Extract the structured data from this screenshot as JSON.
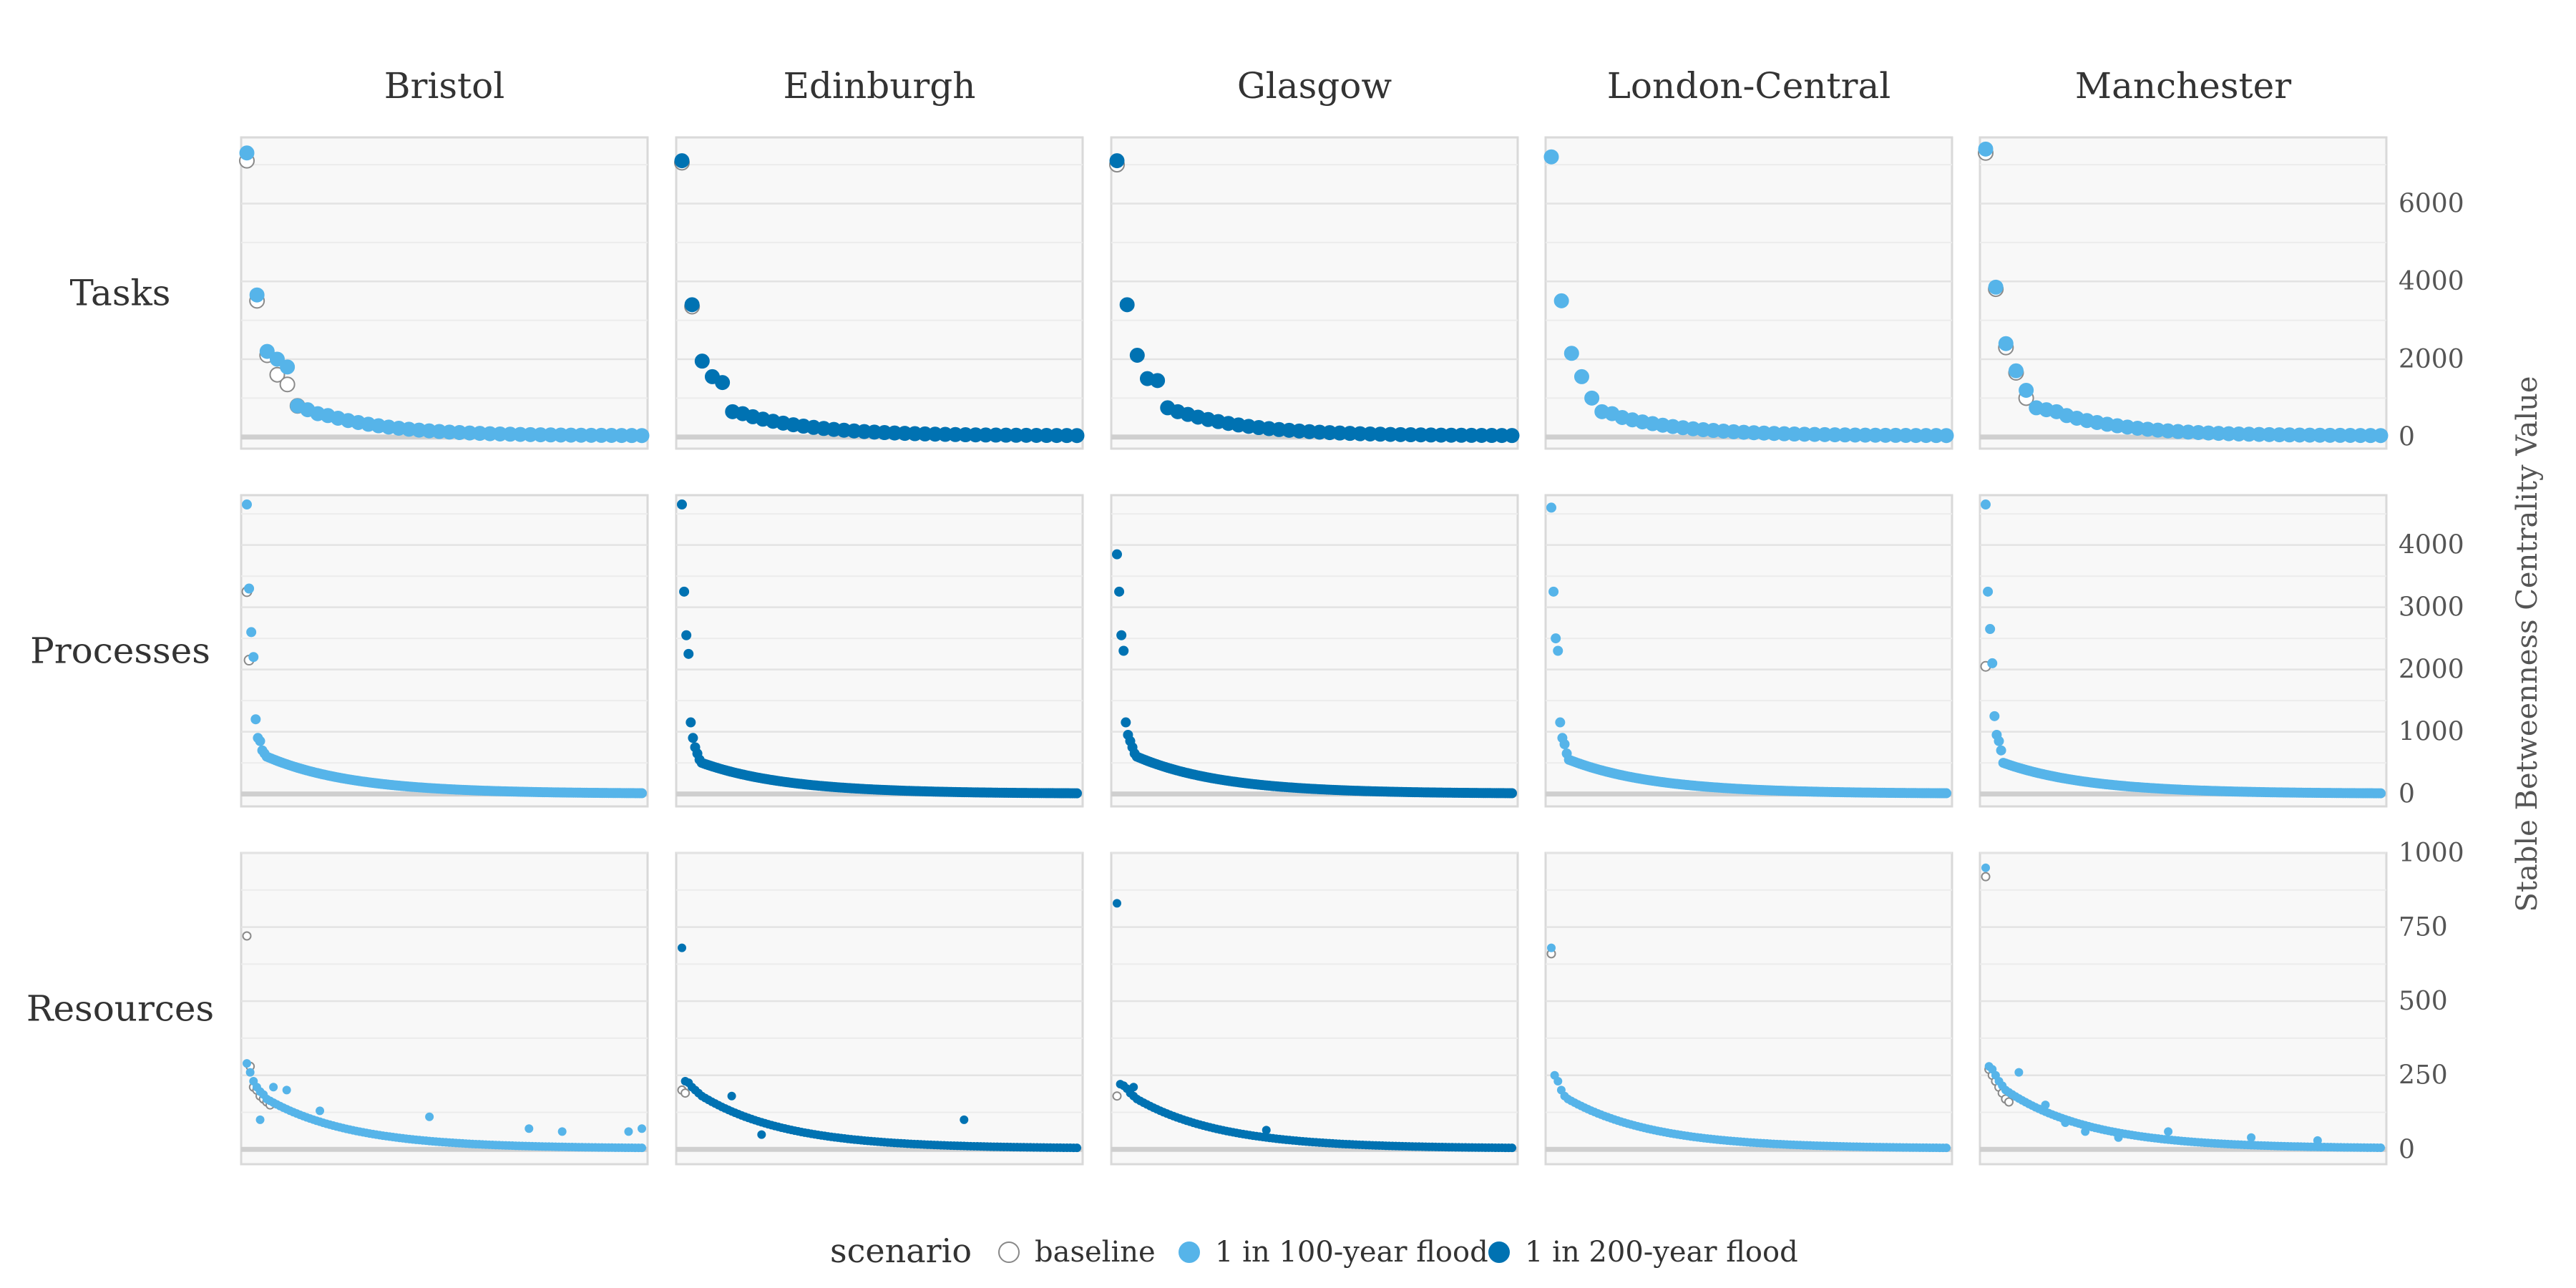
{
  "chart_data": {
    "type": "scatter",
    "columns": [
      "Bristol",
      "Edinburgh",
      "Glasgow",
      "London-Central",
      "Manchester"
    ],
    "rows": [
      "Tasks",
      "Processes",
      "Resources"
    ],
    "ylabel": "Stable Betweenness Centrality Value",
    "xlabel": "",
    "grid": true,
    "y_axis_side": "right",
    "legend": {
      "title": "scenario",
      "position": "bottom",
      "entries": [
        {
          "key": "baseline",
          "label": "baseline",
          "color": "#ffffff",
          "stroke": "#888888"
        },
        {
          "key": "flood100",
          "label": "1 in 100-year flood",
          "color": "#56B4E9",
          "stroke": "#56B4E9"
        },
        {
          "key": "flood200",
          "label": "1 in 200-year flood",
          "color": "#0072B2",
          "stroke": "#0072B2"
        }
      ]
    },
    "scenario_by_column": {
      "Bristol": "flood100",
      "Edinburgh": "flood200",
      "Glasgow": "flood200",
      "London-Central": "flood100",
      "Manchester": "flood100"
    },
    "row_axes": {
      "Tasks": {
        "ylim": [
          -300,
          7700
        ],
        "ticks": [
          0,
          2000,
          4000,
          6000
        ],
        "tick_labels": [
          "0",
          "2000",
          "4000",
          "6000"
        ]
      },
      "Processes": {
        "ylim": [
          -200,
          4800
        ],
        "ticks": [
          0,
          1000,
          2000,
          3000,
          4000
        ],
        "tick_labels": [
          "0",
          "1000",
          "2000",
          "3000",
          "4000"
        ]
      },
      "Resources": {
        "ylim": [
          -50,
          1000
        ],
        "ticks": [
          0,
          250,
          500,
          750,
          1000
        ],
        "tick_labels": [
          "0",
          "250",
          "500",
          "750",
          "1000"
        ]
      }
    },
    "panels": {
      "Tasks": {
        "Bristol": {
          "n": 40,
          "head": [
            7300,
            3650,
            2200,
            2000,
            1800,
            800,
            700,
            600
          ],
          "tail_start": 550,
          "tail_end": 30,
          "baseline_head": [
            7100,
            3500,
            2100,
            1600,
            1350,
            800
          ],
          "outliers": []
        },
        "Edinburgh": {
          "n": 40,
          "head": [
            7100,
            3400,
            1950,
            1550,
            1400,
            650,
            600
          ],
          "tail_start": 520,
          "tail_end": 30,
          "baseline_head": [
            7050,
            3350
          ],
          "outliers": []
        },
        "Glasgow": {
          "n": 40,
          "head": [
            7100,
            3400,
            2100,
            1500,
            1450,
            750,
            650
          ],
          "tail_start": 580,
          "tail_end": 30,
          "baseline_head": [
            7000
          ],
          "outliers": []
        },
        "London-Central": {
          "n": 40,
          "head": [
            7200,
            3500,
            2150,
            1550,
            1000,
            650,
            600
          ],
          "tail_start": 500,
          "tail_end": 30,
          "baseline_head": [],
          "outliers": []
        },
        "Manchester": {
          "n": 40,
          "head": [
            7400,
            3850,
            2400,
            1700,
            1200,
            750,
            700,
            650
          ],
          "tail_start": 550,
          "tail_end": 30,
          "baseline_head": [
            7300,
            3800,
            2300,
            1650,
            1000
          ],
          "outliers": []
        }
      },
      "Processes": {
        "Bristol": {
          "n": 180,
          "head": [
            4650,
            3300,
            2600,
            2200,
            1200,
            900,
            850,
            700,
            650
          ],
          "tail_start": 600,
          "tail_end": 5,
          "baseline_head": [
            3250,
            2150
          ],
          "outliers": []
        },
        "Edinburgh": {
          "n": 180,
          "head": [
            4650,
            3250,
            2550,
            2250,
            1150,
            900,
            750,
            650,
            550
          ],
          "tail_start": 500,
          "tail_end": 5,
          "baseline_head": [],
          "outliers": []
        },
        "Glasgow": {
          "n": 180,
          "head": [
            3850,
            3250,
            2550,
            2300,
            1150,
            950,
            850,
            750,
            650
          ],
          "tail_start": 600,
          "tail_end": 5,
          "baseline_head": [],
          "outliers": []
        },
        "London-Central": {
          "n": 180,
          "head": [
            4600,
            3250,
            2500,
            2300,
            1150,
            900,
            800,
            650
          ],
          "tail_start": 550,
          "tail_end": 5,
          "baseline_head": [],
          "outliers": []
        },
        "Manchester": {
          "n": 180,
          "head": [
            4650,
            3250,
            2650,
            2100,
            1250,
            950,
            850,
            700
          ],
          "tail_start": 500,
          "tail_end": 5,
          "baseline_head": [
            2050
          ],
          "outliers": []
        }
      },
      "Resources": {
        "Bristol": {
          "n": 120,
          "head": [
            290,
            260,
            230,
            210,
            195,
            185
          ],
          "tail_start": 170,
          "tail_end": 3,
          "baseline_head": [
            720,
            280,
            210,
            200,
            180,
            170,
            160,
            150
          ],
          "outliers": [
            [
              4,
              100
            ],
            [
              8,
              210
            ],
            [
              12,
              200
            ],
            [
              22,
              130
            ],
            [
              55,
              110
            ],
            [
              85,
              70
            ],
            [
              95,
              60
            ],
            [
              115,
              60
            ],
            [
              119,
              70
            ]
          ]
        },
        "Edinburgh": {
          "n": 120,
          "head": [
            680,
            230,
            225,
            210,
            200,
            190
          ],
          "tail_start": 180,
          "tail_end": 3,
          "baseline_head": [
            200,
            190
          ],
          "outliers": [
            [
              15,
              180
            ],
            [
              24,
              50
            ],
            [
              85,
              100
            ]
          ]
        },
        "Glasgow": {
          "n": 120,
          "head": [
            830,
            220,
            215,
            205,
            190,
            180
          ],
          "tail_start": 170,
          "tail_end": 3,
          "baseline_head": [
            180
          ],
          "outliers": [
            [
              5,
              210
            ],
            [
              45,
              65
            ]
          ]
        },
        "London-Central": {
          "n": 120,
          "head": [
            680,
            250,
            230,
            200,
            180
          ],
          "tail_start": 170,
          "tail_end": 3,
          "baseline_head": [
            660
          ],
          "outliers": []
        },
        "Manchester": {
          "n": 120,
          "head": [
            950,
            280,
            270,
            250,
            230,
            215
          ],
          "tail_start": 200,
          "tail_end": 3,
          "baseline_head": [
            920,
            270,
            250,
            230,
            210,
            190,
            170,
            160
          ],
          "outliers": [
            [
              10,
              260
            ],
            [
              18,
              150
            ],
            [
              24,
              90
            ],
            [
              30,
              60
            ],
            [
              40,
              40
            ],
            [
              55,
              60
            ],
            [
              80,
              40
            ],
            [
              100,
              30
            ]
          ]
        }
      }
    }
  }
}
